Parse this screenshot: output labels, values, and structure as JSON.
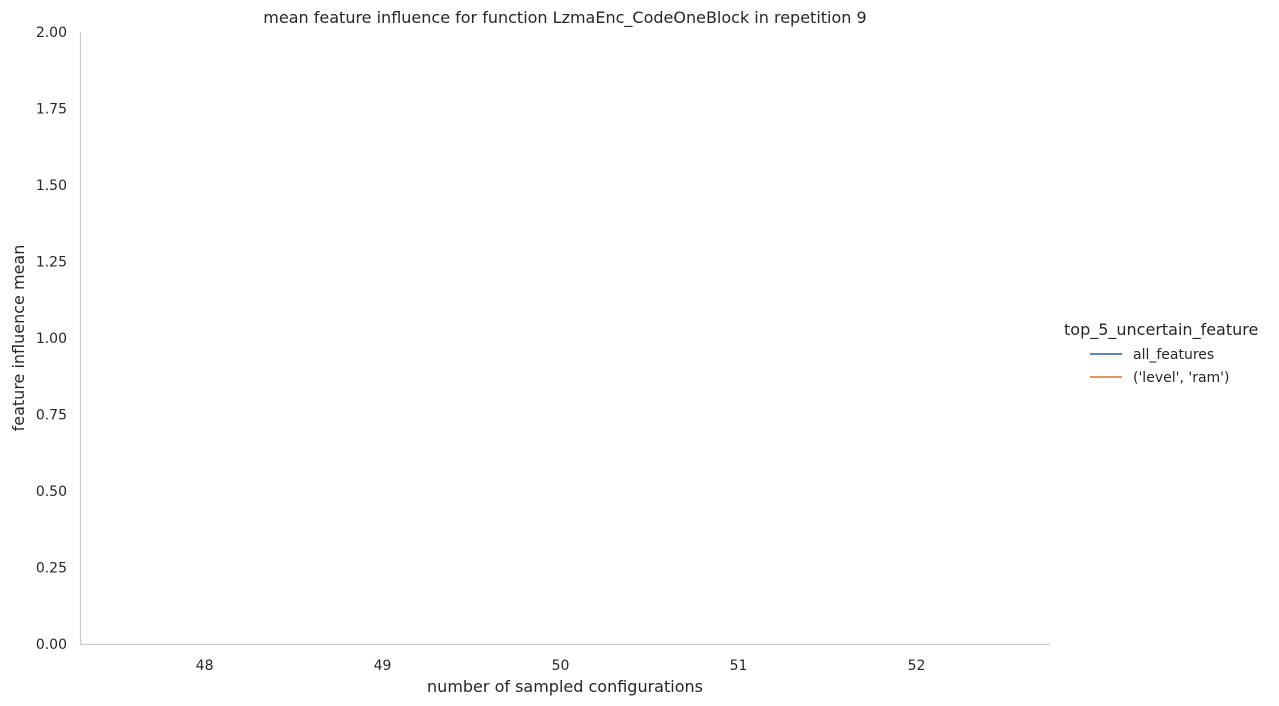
{
  "chart_data": {
    "type": "line",
    "title": "mean feature influence for function LzmaEnc_CodeOneBlock in repetition 9",
    "xlabel": "number of sampled configurations",
    "ylabel": "feature influence mean",
    "x_ticks": [
      "48",
      "49",
      "50",
      "51",
      "52"
    ],
    "y_ticks": [
      "0.00",
      "0.25",
      "0.50",
      "0.75",
      "1.00",
      "1.25",
      "1.50",
      "1.75",
      "2.00"
    ],
    "xlim": [
      47.3,
      52.75
    ],
    "ylim": [
      0,
      2
    ],
    "grid": false,
    "legend_title": "top_5_uncertain_feature",
    "legend_position": "right",
    "series": [
      {
        "name": "all_features",
        "color": "#4c72b0",
        "points": []
      },
      {
        "name": "('level', 'ram')",
        "color": "#dd8452",
        "points": []
      }
    ]
  }
}
